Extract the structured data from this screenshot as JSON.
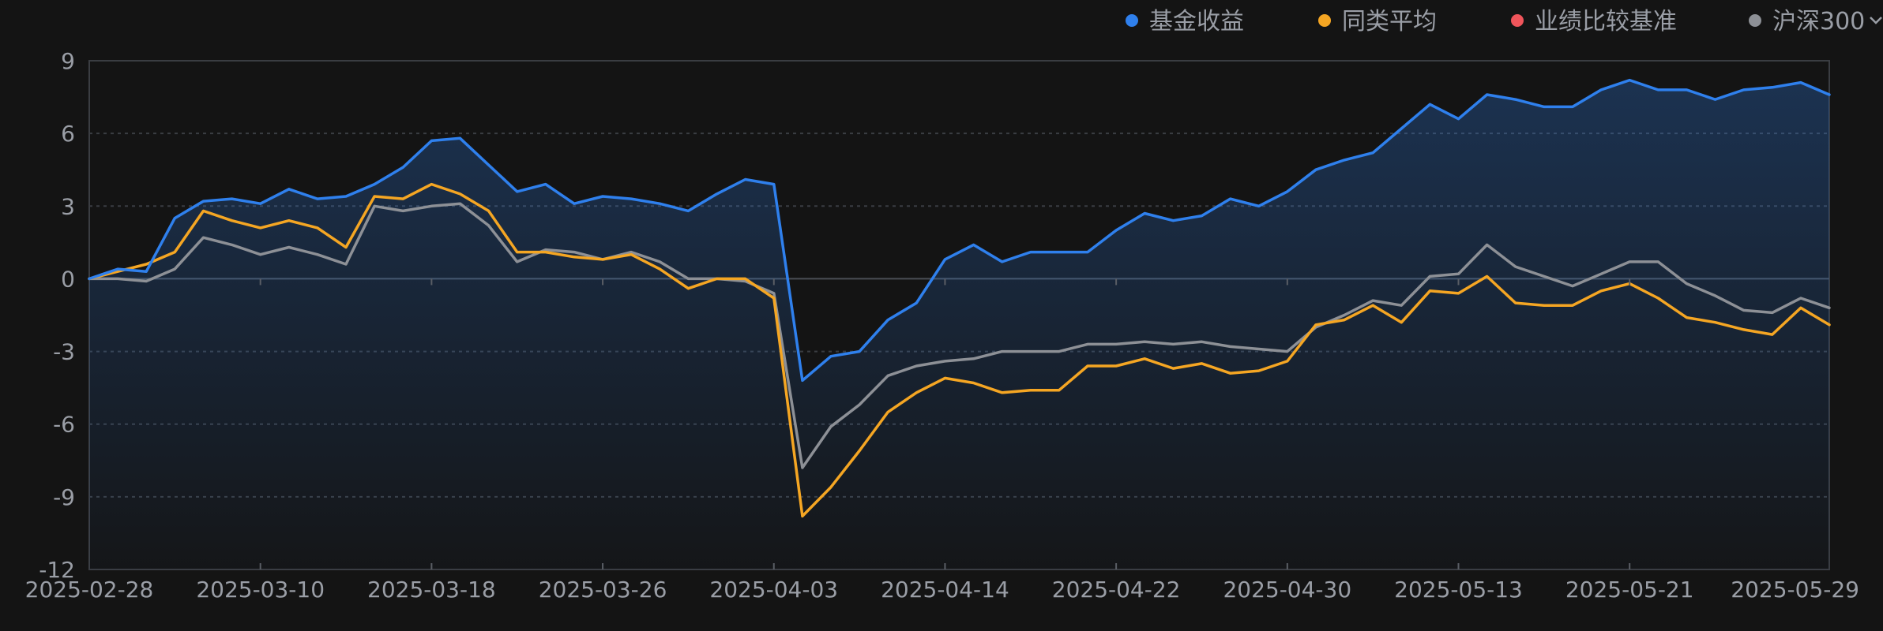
{
  "colors": {
    "background": "#141414",
    "fund": "#2f80ed",
    "peer_avg": "#f5a623",
    "benchmark": "#f0555b",
    "csi300": "#8d9096",
    "grid": "#3a3d42",
    "axis_text": "#9a9ea6"
  },
  "legend": {
    "items": [
      {
        "label": "基金收益",
        "color": "#2f80ed"
      },
      {
        "label": "同类平均",
        "color": "#f5a623"
      },
      {
        "label": "业绩比较基准",
        "color": "#f0555b"
      },
      {
        "label": "沪深300",
        "color": "#8d9096"
      }
    ],
    "more_icon": "chevron-down-icon"
  },
  "chart_data": {
    "type": "area",
    "grid": true,
    "legend_position": "top-right",
    "ylim": [
      -12,
      9
    ],
    "yticks": [
      9,
      6,
      3,
      0,
      -3,
      -6,
      -9,
      -12
    ],
    "xticks": [
      {
        "label": "2025-02-28",
        "index": 0
      },
      {
        "label": "2025-03-10",
        "index": 6
      },
      {
        "label": "2025-03-18",
        "index": 12
      },
      {
        "label": "2025-03-26",
        "index": 18
      },
      {
        "label": "2025-04-03",
        "index": 24
      },
      {
        "label": "2025-04-14",
        "index": 30
      },
      {
        "label": "2025-04-22",
        "index": 36
      },
      {
        "label": "2025-04-30",
        "index": 42
      },
      {
        "label": "2025-05-13",
        "index": 48
      },
      {
        "label": "2025-05-21",
        "index": 54
      },
      {
        "label": "2025-05-29",
        "index": 61
      }
    ],
    "point_count": 62,
    "series": [
      {
        "name": "基金收益",
        "color": "#2f80ed",
        "area": true,
        "values": [
          0,
          0.4,
          0.3,
          2.5,
          3.2,
          3.3,
          3.1,
          3.7,
          3.3,
          3.4,
          3.9,
          4.6,
          5.7,
          5.8,
          4.7,
          3.6,
          3.9,
          3.1,
          3.4,
          3.3,
          3.1,
          2.8,
          3.5,
          4.1,
          3.9,
          -4.2,
          -3.2,
          -3.0,
          -1.7,
          -1.0,
          0.8,
          1.4,
          0.7,
          1.1,
          1.1,
          1.1,
          2.0,
          2.7,
          2.4,
          2.6,
          3.3,
          3.0,
          3.6,
          4.5,
          4.9,
          5.2,
          6.2,
          7.2,
          6.6,
          7.6,
          7.4,
          7.1,
          7.1,
          7.8,
          8.2,
          7.8,
          7.8,
          7.4,
          7.8,
          7.9,
          8.1,
          7.6
        ]
      },
      {
        "name": "同类平均",
        "color": "#f5a623",
        "area": false,
        "values": [
          0,
          0.3,
          0.6,
          1.1,
          2.8,
          2.4,
          2.1,
          2.4,
          2.1,
          1.3,
          3.4,
          3.3,
          3.9,
          3.5,
          2.8,
          1.1,
          1.1,
          0.9,
          0.8,
          1.0,
          0.4,
          -0.4,
          0,
          0,
          -0.8,
          -9.8,
          -8.6,
          -7.1,
          -5.5,
          -4.7,
          -4.1,
          -4.3,
          -4.7,
          -4.6,
          -4.6,
          -3.6,
          -3.6,
          -3.3,
          -3.7,
          -3.5,
          -3.9,
          -3.8,
          -3.4,
          -1.9,
          -1.7,
          -1.1,
          -1.8,
          -0.5,
          -0.6,
          0.1,
          -1.0,
          -1.1,
          -1.1,
          -0.5,
          -0.2,
          -0.8,
          -1.6,
          -1.8,
          -2.1,
          -2.3,
          -1.2,
          -1.9
        ]
      },
      {
        "name": "沪深300",
        "color": "#8d9096",
        "area": false,
        "values": [
          0,
          0,
          -0.1,
          0.4,
          1.7,
          1.4,
          1.0,
          1.3,
          1.0,
          0.6,
          3.0,
          2.8,
          3.0,
          3.1,
          2.2,
          0.7,
          1.2,
          1.1,
          0.8,
          1.1,
          0.7,
          0,
          0,
          -0.1,
          -0.6,
          -7.8,
          -6.1,
          -5.2,
          -4.0,
          -3.6,
          -3.4,
          -3.3,
          -3.0,
          -3.0,
          -3.0,
          -2.7,
          -2.7,
          -2.6,
          -2.7,
          -2.6,
          -2.8,
          -2.9,
          -3.0,
          -2.0,
          -1.5,
          -0.9,
          -1.1,
          0.1,
          0.2,
          1.4,
          0.5,
          0.1,
          -0.3,
          0.2,
          0.7,
          0.7,
          -0.2,
          -0.7,
          -1.3,
          -1.4,
          -0.8,
          -1.2
        ]
      }
    ]
  }
}
